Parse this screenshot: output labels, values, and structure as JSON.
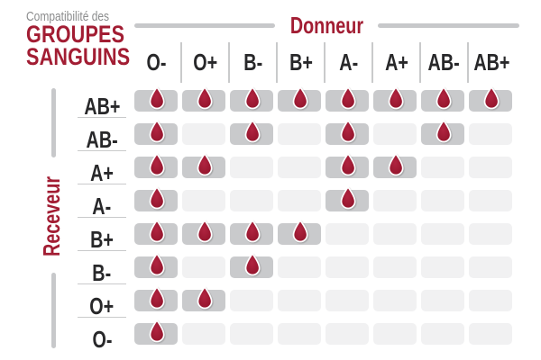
{
  "title": {
    "eyebrow": "Compatibilité des",
    "line1": "GROUPES",
    "line2": "SANGUINS"
  },
  "axis": {
    "donor": "Donneur",
    "receiver": "Receveur"
  },
  "donors": [
    "O-",
    "O+",
    "B-",
    "B+",
    "A-",
    "A+",
    "AB-",
    "AB+"
  ],
  "receivers": [
    "AB+",
    "AB-",
    "A+",
    "A-",
    "B+",
    "B-",
    "O+",
    "O-"
  ],
  "matrix": [
    [
      1,
      1,
      1,
      1,
      1,
      1,
      1,
      1
    ],
    [
      1,
      0,
      1,
      0,
      1,
      0,
      1,
      0
    ],
    [
      1,
      1,
      0,
      0,
      1,
      1,
      0,
      0
    ],
    [
      1,
      0,
      0,
      0,
      1,
      0,
      0,
      0
    ],
    [
      1,
      1,
      1,
      1,
      0,
      0,
      0,
      0
    ],
    [
      1,
      0,
      1,
      0,
      0,
      0,
      0,
      0
    ],
    [
      1,
      1,
      0,
      0,
      0,
      0,
      0,
      0
    ],
    [
      1,
      0,
      0,
      0,
      0,
      0,
      0,
      0
    ]
  ],
  "icons": {
    "compatible": "blood-drop-icon"
  },
  "colors": {
    "brand_red": "#A21D33",
    "dark_text": "#28282A",
    "muted_text": "#8A8B8C",
    "bar_gray": "#C7C8CA",
    "separator_gray": "#C9CACB",
    "cell_filled": "#C9CACC",
    "cell_empty": "#F1F1F2",
    "drop_light": "#B02440",
    "drop_dark": "#91132A",
    "drop_outline": "#FFFFFF"
  },
  "chart_data": {
    "type": "heatmap",
    "title": "Compatibilité des groupes sanguins",
    "xlabel": "Donneur",
    "ylabel": "Receveur",
    "x": [
      "O-",
      "O+",
      "B-",
      "B+",
      "A-",
      "A+",
      "AB-",
      "AB+"
    ],
    "y": [
      "AB+",
      "AB-",
      "A+",
      "A-",
      "B+",
      "B-",
      "O+",
      "O-"
    ],
    "values": [
      [
        1,
        1,
        1,
        1,
        1,
        1,
        1,
        1
      ],
      [
        1,
        0,
        1,
        0,
        1,
        0,
        1,
        0
      ],
      [
        1,
        1,
        0,
        0,
        1,
        1,
        0,
        0
      ],
      [
        1,
        0,
        0,
        0,
        1,
        0,
        0,
        0
      ],
      [
        1,
        1,
        1,
        1,
        0,
        0,
        0,
        0
      ],
      [
        1,
        0,
        1,
        0,
        0,
        0,
        0,
        0
      ],
      [
        1,
        1,
        0,
        0,
        0,
        0,
        0,
        0
      ],
      [
        1,
        0,
        0,
        0,
        0,
        0,
        0,
        0
      ]
    ],
    "value_meaning": "1 = compatible (goutte de sang affichée), 0 = incompatible",
    "legend_position": "none",
    "grid": false
  }
}
